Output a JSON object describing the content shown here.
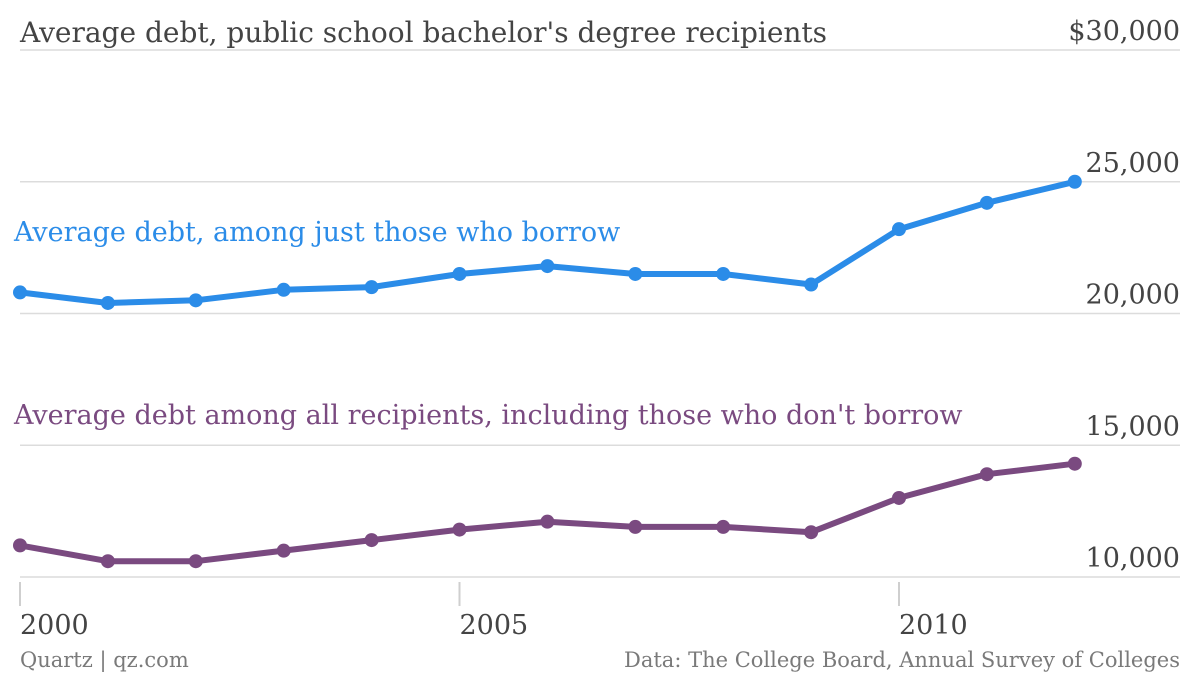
{
  "chart_data": {
    "type": "line",
    "title": "Average debt, public school bachelor's degree recipients",
    "x": [
      2000,
      2001,
      2002,
      2003,
      2004,
      2005,
      2006,
      2007,
      2008,
      2009,
      2010,
      2011,
      2012
    ],
    "x_ticks": [
      "2000",
      "2005",
      "2010"
    ],
    "y_ticks": [
      "$30,000",
      "25,000",
      "20,000",
      "15,000",
      "10,000"
    ],
    "y_tick_values": [
      30000,
      25000,
      20000,
      15000,
      10000
    ],
    "ylim": [
      10000,
      30000
    ],
    "grid": true,
    "series": [
      {
        "name": "Average debt, among just those who borrow",
        "color": "#2b8ce8",
        "values": [
          20800,
          20400,
          20500,
          20900,
          21000,
          21500,
          21800,
          21500,
          21500,
          21100,
          23200,
          24200,
          25000
        ]
      },
      {
        "name": "Average debt among all recipients, including those who don't borrow",
        "color": "#7a4a80",
        "values": [
          11200,
          10600,
          10600,
          11000,
          11400,
          11800,
          12100,
          11900,
          11900,
          11700,
          13000,
          13900,
          14300
        ]
      }
    ]
  },
  "footer": {
    "left": "Quartz | qz.com",
    "right": "Data: The College Board, Annual Survey of Colleges"
  }
}
